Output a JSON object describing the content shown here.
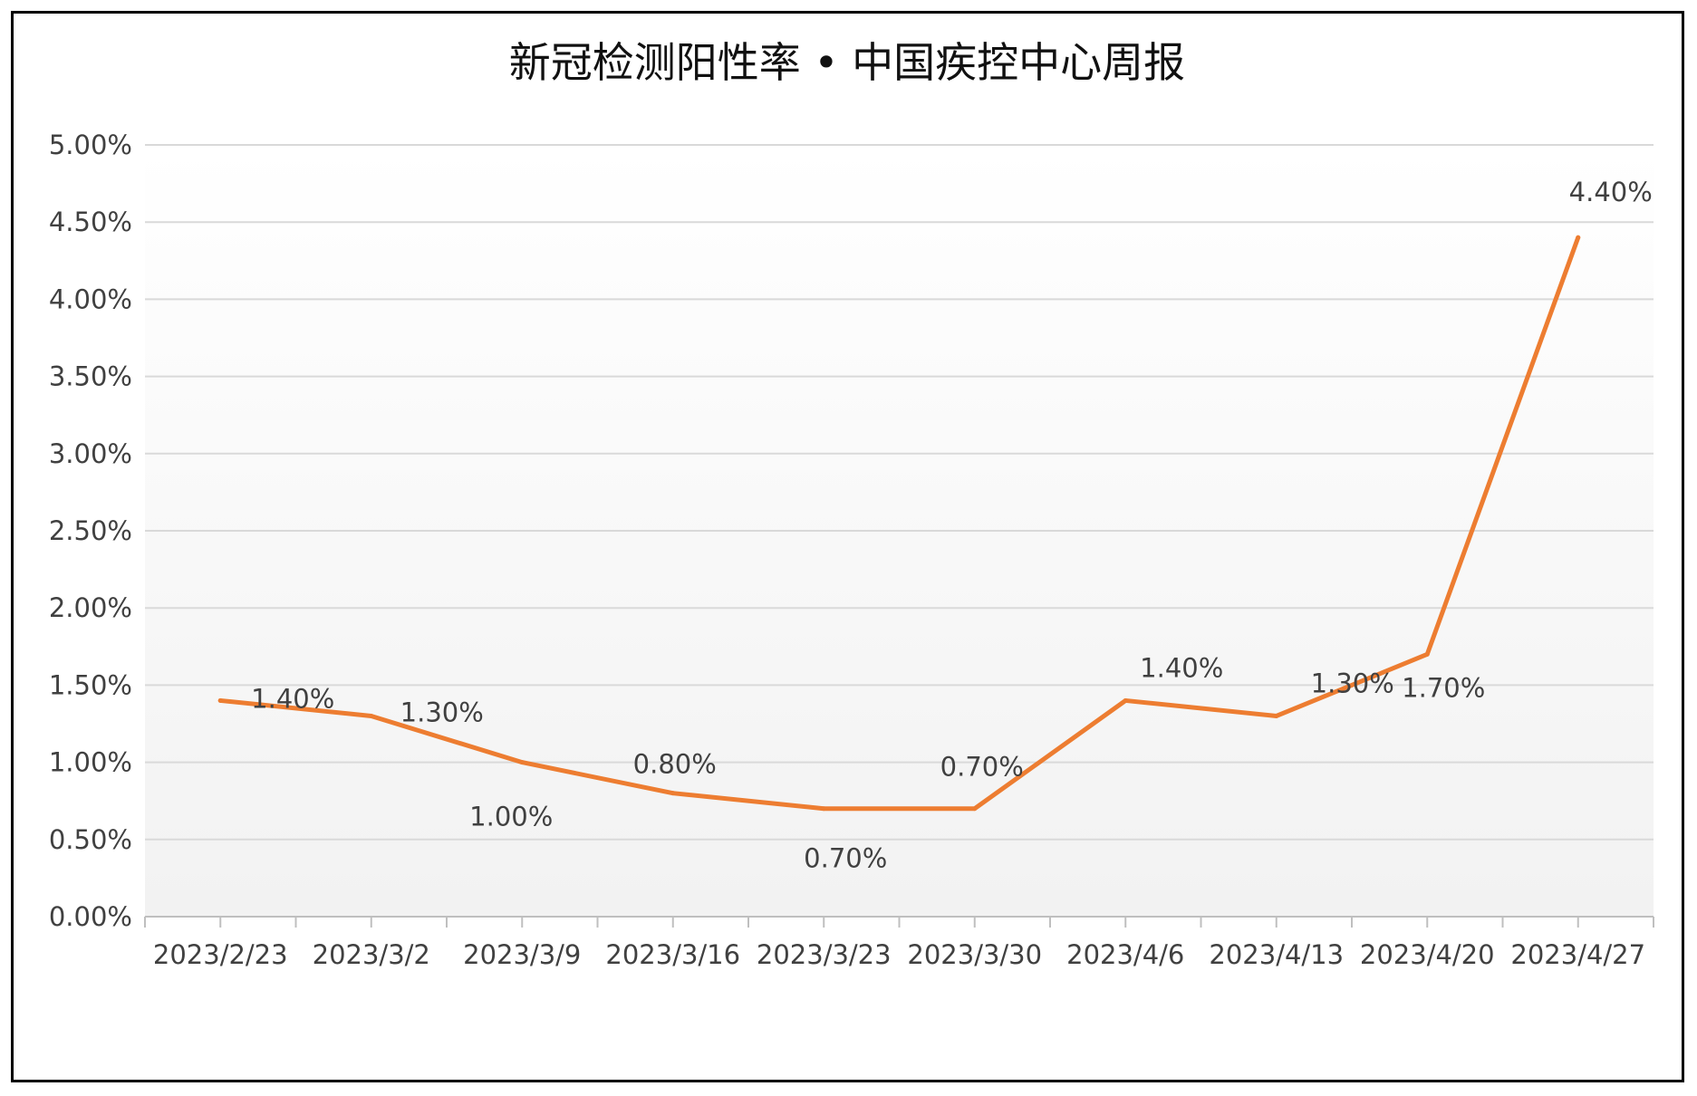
{
  "chart_data": {
    "type": "line",
    "title": "新冠检测阳性率 • 中国疾控中心周报",
    "xlabel": "",
    "ylabel": "",
    "categories": [
      "2023/2/23",
      "2023/3/2",
      "2023/3/9",
      "2023/3/16",
      "2023/3/23",
      "2023/3/30",
      "2023/4/6",
      "2023/4/13",
      "2023/4/20",
      "2023/4/27"
    ],
    "series": [
      {
        "values": [
          1.4,
          1.3,
          1.0,
          0.8,
          0.7,
          0.7,
          1.4,
          1.3,
          1.7,
          4.4
        ],
        "data_labels": [
          "1.40%",
          "1.30%",
          "1.00%",
          "0.80%",
          "0.70%",
          "0.70%",
          "1.40%",
          "1.30%",
          "1.70%",
          "4.40%"
        ],
        "color": "#ED7D31"
      }
    ],
    "ylim": [
      0,
      5
    ],
    "yticks": [
      0,
      0.5,
      1.0,
      1.5,
      2.0,
      2.5,
      3.0,
      3.5,
      4.0,
      4.5,
      5.0
    ],
    "ytick_labels": [
      "0.00%",
      "0.50%",
      "1.00%",
      "1.50%",
      "2.00%",
      "2.50%",
      "3.00%",
      "3.50%",
      "4.00%",
      "4.50%",
      "5.00%"
    ],
    "grid": true,
    "legend": "none",
    "gridline_color": "#D9D9D9",
    "background_gradient": [
      "#FFFFFF",
      "#F2F2F2"
    ]
  }
}
